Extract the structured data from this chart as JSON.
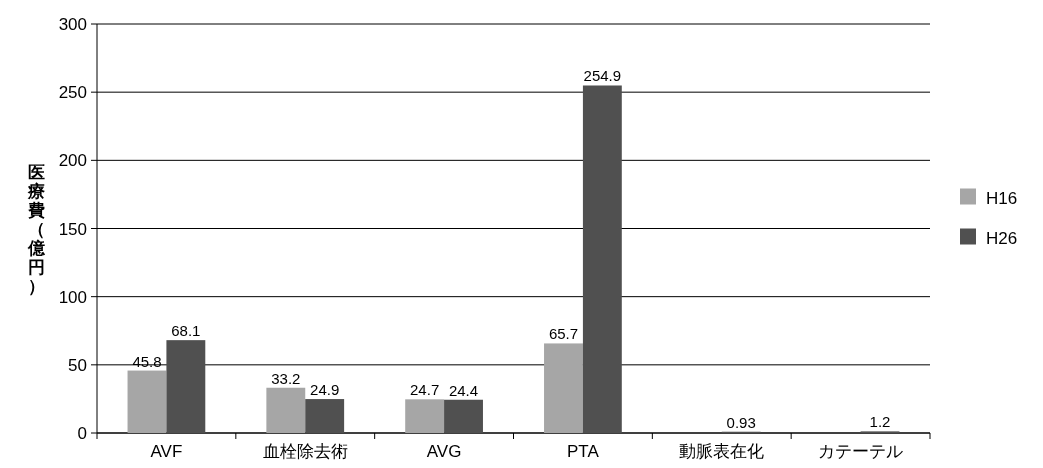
{
  "chart_data": {
    "type": "bar",
    "ylabel": "医療費（億円）",
    "categories": [
      "AVF",
      "血栓除去術",
      "AVG",
      "PTA",
      "動脈表在化",
      "カテーテル"
    ],
    "series": [
      {
        "name": "H16",
        "color": "#a6a6a6",
        "values": [
          45.8,
          33.2,
          24.7,
          65.7,
          null,
          null
        ]
      },
      {
        "name": "H26",
        "color": "#505050",
        "values": [
          68.1,
          24.9,
          24.4,
          254.9,
          0.93,
          1.2
        ]
      }
    ],
    "ylim": [
      0,
      300
    ],
    "yticks": [
      0,
      50,
      100,
      150,
      200,
      250,
      300
    ],
    "grid": "y",
    "legend": "right",
    "data_labels": true
  }
}
